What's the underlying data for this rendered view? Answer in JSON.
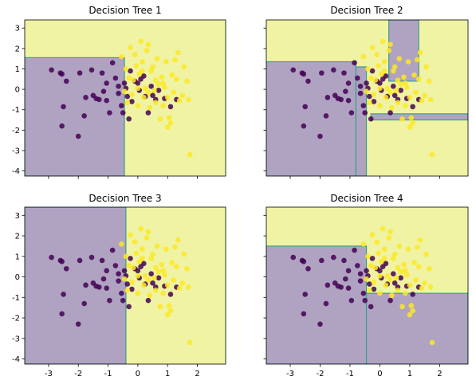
{
  "chart_data": [
    {
      "type": "scatter",
      "title": "Decision Tree 1",
      "xlim": [
        -3.8,
        2.95
      ],
      "ylim": [
        -4.25,
        3.4
      ],
      "xticks": [
        "-3",
        "-2",
        "-1",
        "0",
        "1",
        "2"
      ],
      "yticks": [
        "3",
        "2",
        "1",
        "0",
        "-1",
        "-2",
        "-3",
        "-4"
      ],
      "x_tick_labels_visible": false,
      "y_tick_labels_visible": true,
      "colors": {
        "class_0": "#440154",
        "class_1": "#fde725",
        "region_0": "#b0a3c2",
        "region_1": "#eff3a3",
        "boundary": "#3aa08a"
      },
      "regions": [
        {
          "class": 0,
          "x": [
            -3.8,
            -0.45
          ],
          "y": [
            -4.25,
            1.55
          ]
        }
      ],
      "points": {
        "class_0": "shared",
        "class_1": "shared"
      }
    },
    {
      "type": "scatter",
      "title": "Decision Tree 2",
      "xlim": [
        -3.8,
        2.95
      ],
      "ylim": [
        -4.25,
        3.4
      ],
      "xticks": [
        "-3",
        "-2",
        "-1",
        "0",
        "1",
        "2"
      ],
      "yticks": [
        "3",
        "2",
        "1",
        "0",
        "-1",
        "-2",
        "-3",
        "-4"
      ],
      "x_tick_labels_visible": false,
      "y_tick_labels_visible": false,
      "regions": [
        {
          "class": 0,
          "x": [
            -3.8,
            -0.8
          ],
          "y": [
            -4.25,
            1.35
          ]
        },
        {
          "class": 0,
          "x": [
            -0.8,
            -0.45
          ],
          "y": [
            -4.25,
            1.1
          ]
        },
        {
          "class": 0,
          "x": [
            0.3,
            1.3
          ],
          "y": [
            0.4,
            3.4
          ]
        },
        {
          "class": 0,
          "x": [
            -0.3,
            2.95
          ],
          "y": [
            -1.2,
            -1.5
          ]
        }
      ],
      "points": {
        "class_0": "shared",
        "class_1": "shared"
      }
    },
    {
      "type": "scatter",
      "title": "Decision Tree 3",
      "xlim": [
        -3.8,
        2.95
      ],
      "ylim": [
        -4.25,
        3.4
      ],
      "xticks": [
        "-3",
        "-2",
        "-1",
        "0",
        "1",
        "2"
      ],
      "yticks": [
        "3",
        "2",
        "1",
        "0",
        "-1",
        "-2",
        "-3",
        "-4"
      ],
      "x_tick_labels_visible": true,
      "y_tick_labels_visible": true,
      "regions": [
        {
          "class": 0,
          "x": [
            -3.8,
            -0.4
          ],
          "y": [
            -4.25,
            3.4
          ]
        }
      ],
      "points": {
        "class_0": "shared",
        "class_1": "shared"
      }
    },
    {
      "type": "scatter",
      "title": "Decision Tree 4",
      "xlim": [
        -3.8,
        2.95
      ],
      "ylim": [
        -4.25,
        3.4
      ],
      "xticks": [
        "-3",
        "-2",
        "-1",
        "0",
        "1",
        "2"
      ],
      "yticks": [
        "3",
        "2",
        "1",
        "0",
        "-1",
        "-2",
        "-3",
        "-4"
      ],
      "x_tick_labels_visible": true,
      "y_tick_labels_visible": false,
      "regions": [
        {
          "class": 0,
          "x": [
            -3.8,
            -0.45
          ],
          "y": [
            -4.25,
            1.5
          ]
        },
        {
          "class": 0,
          "x": [
            -0.45,
            2.95
          ],
          "y": [
            -4.25,
            -0.8
          ]
        }
      ],
      "points": {
        "class_0": "shared",
        "class_1": "shared"
      }
    }
  ],
  "points": {
    "class_0": [
      [
        -2.9,
        0.95
      ],
      [
        -2.6,
        0.8
      ],
      [
        -2.55,
        0.75
      ],
      [
        -2.4,
        0.4
      ],
      [
        -2.5,
        -0.85
      ],
      [
        -2.55,
        -1.8
      ],
      [
        -2.0,
        -2.3
      ],
      [
        -1.95,
        0.8
      ],
      [
        -1.75,
        -0.4
      ],
      [
        -1.55,
        0.95
      ],
      [
        -1.5,
        -0.3
      ],
      [
        -1.4,
        -0.45
      ],
      [
        -1.3,
        -0.5
      ],
      [
        -1.2,
        0.8
      ],
      [
        -1.15,
        -0.1
      ],
      [
        -1.05,
        -0.55
      ],
      [
        -0.95,
        -1.15
      ],
      [
        -0.85,
        1.3
      ],
      [
        -0.75,
        0.55
      ],
      [
        -0.65,
        0.15
      ],
      [
        -0.55,
        -0.8
      ],
      [
        -0.5,
        -1.15
      ],
      [
        -0.45,
        0.3
      ],
      [
        -0.4,
        0.05
      ],
      [
        -0.35,
        -0.35
      ],
      [
        -0.3,
        -1.45
      ],
      [
        -0.25,
        0.9
      ],
      [
        -0.1,
        0.4
      ],
      [
        0.0,
        0.3
      ],
      [
        0.05,
        -0.05
      ],
      [
        0.1,
        0.5
      ],
      [
        0.2,
        0.65
      ],
      [
        0.25,
        -0.35
      ],
      [
        0.35,
        -1.15
      ],
      [
        0.5,
        -0.3
      ],
      [
        0.6,
        -0.5
      ],
      [
        0.7,
        -0.05
      ],
      [
        0.9,
        -0.45
      ],
      [
        1.1,
        -0.85
      ],
      [
        1.3,
        -0.5
      ],
      [
        -1.8,
        -1.3
      ],
      [
        -0.2,
        -0.6
      ],
      [
        0.45,
        0.15
      ],
      [
        -1.05,
        0.3
      ],
      [
        -0.65,
        -0.2
      ]
    ],
    "class_1": [
      [
        -0.55,
        1.6
      ],
      [
        -0.4,
        1.0
      ],
      [
        -0.35,
        -0.65
      ],
      [
        -0.3,
        0.55
      ],
      [
        -0.25,
        2.05
      ],
      [
        -0.2,
        -0.25
      ],
      [
        -0.1,
        1.7
      ],
      [
        -0.05,
        1.15
      ],
      [
        0.0,
        -0.8
      ],
      [
        0.05,
        0.75
      ],
      [
        0.1,
        2.35
      ],
      [
        0.15,
        1.35
      ],
      [
        0.2,
        -0.4
      ],
      [
        0.25,
        0.05
      ],
      [
        0.3,
        1.9
      ],
      [
        0.35,
        2.2
      ],
      [
        0.4,
        -0.9
      ],
      [
        0.45,
        0.9
      ],
      [
        0.5,
        1.1
      ],
      [
        0.55,
        -0.05
      ],
      [
        0.6,
        -0.65
      ],
      [
        0.65,
        1.5
      ],
      [
        0.7,
        0.25
      ],
      [
        0.75,
        -1.45
      ],
      [
        0.8,
        0.6
      ],
      [
        0.85,
        -0.8
      ],
      [
        0.9,
        0.1
      ],
      [
        0.95,
        1.35
      ],
      [
        1.0,
        -0.4
      ],
      [
        1.05,
        -1.4
      ],
      [
        1.1,
        -1.65
      ],
      [
        1.15,
        0.7
      ],
      [
        1.2,
        -0.15
      ],
      [
        1.25,
        1.45
      ],
      [
        1.3,
        0.5
      ],
      [
        1.35,
        1.8
      ],
      [
        1.4,
        -0.55
      ],
      [
        1.5,
        -0.3
      ],
      [
        1.55,
        1.1
      ],
      [
        1.65,
        0.4
      ],
      [
        1.7,
        -0.5
      ],
      [
        1.75,
        -3.2
      ],
      [
        1.0,
        -1.85
      ],
      [
        0.6,
        0.45
      ],
      [
        0.0,
        0.05
      ],
      [
        -0.45,
        -0.1
      ],
      [
        0.35,
        -0.15
      ],
      [
        0.85,
        0.3
      ],
      [
        0.15,
        0.9
      ],
      [
        -0.15,
        0.45
      ]
    ]
  }
}
